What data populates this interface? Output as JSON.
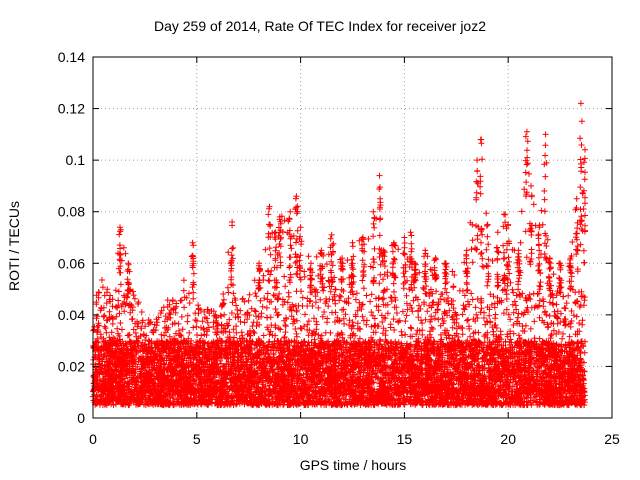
{
  "chart_data": {
    "type": "scatter",
    "title": "Day 259 of 2014, Rate Of TEC Index for receiver joz2",
    "xlabel": "GPS time / hours",
    "ylabel": "ROTI / TECUs",
    "xlim": [
      0,
      25
    ],
    "ylim": [
      0,
      0.14
    ],
    "grid": true,
    "marker": "+",
    "marker_color": "#ff0000",
    "x_ticks": [
      0,
      5,
      10,
      15,
      20,
      25
    ],
    "x_tick_labels": [
      "0",
      "5",
      "10",
      "15",
      "20",
      "25"
    ],
    "y_ticks": [
      0,
      0.02,
      0.04,
      0.06,
      0.08,
      0.1,
      0.12,
      0.14
    ],
    "y_tick_labels": [
      "0",
      "0.02",
      "0.04",
      "0.06",
      "0.08",
      "0.1",
      "0.12",
      "0.14"
    ],
    "x_range_of_data": [
      0,
      23.7
    ],
    "envelope_x": [
      0,
      0.5,
      1.0,
      1.3,
      1.7,
      2.0,
      2.5,
      3.0,
      3.5,
      4.0,
      4.5,
      4.8,
      5.0,
      5.5,
      6.0,
      6.7,
      7.0,
      7.5,
      8.0,
      8.5,
      8.8,
      9.0,
      9.5,
      9.8,
      10.0,
      10.5,
      11.0,
      11.5,
      12.0,
      12.5,
      13.0,
      13.5,
      13.8,
      14.0,
      14.5,
      15.0,
      15.3,
      15.5,
      16.0,
      16.5,
      17.0,
      17.5,
      18.0,
      18.5,
      18.7,
      19.0,
      19.5,
      19.8,
      20.0,
      20.5,
      20.9,
      21.1,
      21.5,
      21.8,
      22.0,
      22.5,
      23.0,
      23.3,
      23.5,
      23.7
    ],
    "envelope_max_roti": [
      0.042,
      0.058,
      0.05,
      0.074,
      0.06,
      0.05,
      0.038,
      0.04,
      0.045,
      0.05,
      0.055,
      0.068,
      0.045,
      0.042,
      0.045,
      0.076,
      0.045,
      0.05,
      0.06,
      0.082,
      0.072,
      0.078,
      0.08,
      0.086,
      0.074,
      0.06,
      0.065,
      0.071,
      0.062,
      0.068,
      0.07,
      0.08,
      0.094,
      0.065,
      0.068,
      0.07,
      0.072,
      0.06,
      0.065,
      0.062,
      0.06,
      0.058,
      0.065,
      0.1,
      0.108,
      0.075,
      0.072,
      0.079,
      0.075,
      0.065,
      0.111,
      0.09,
      0.074,
      0.11,
      0.062,
      0.06,
      0.062,
      0.085,
      0.122,
      0.104
    ],
    "baseline_range_roti": [
      0.005,
      0.03
    ]
  }
}
